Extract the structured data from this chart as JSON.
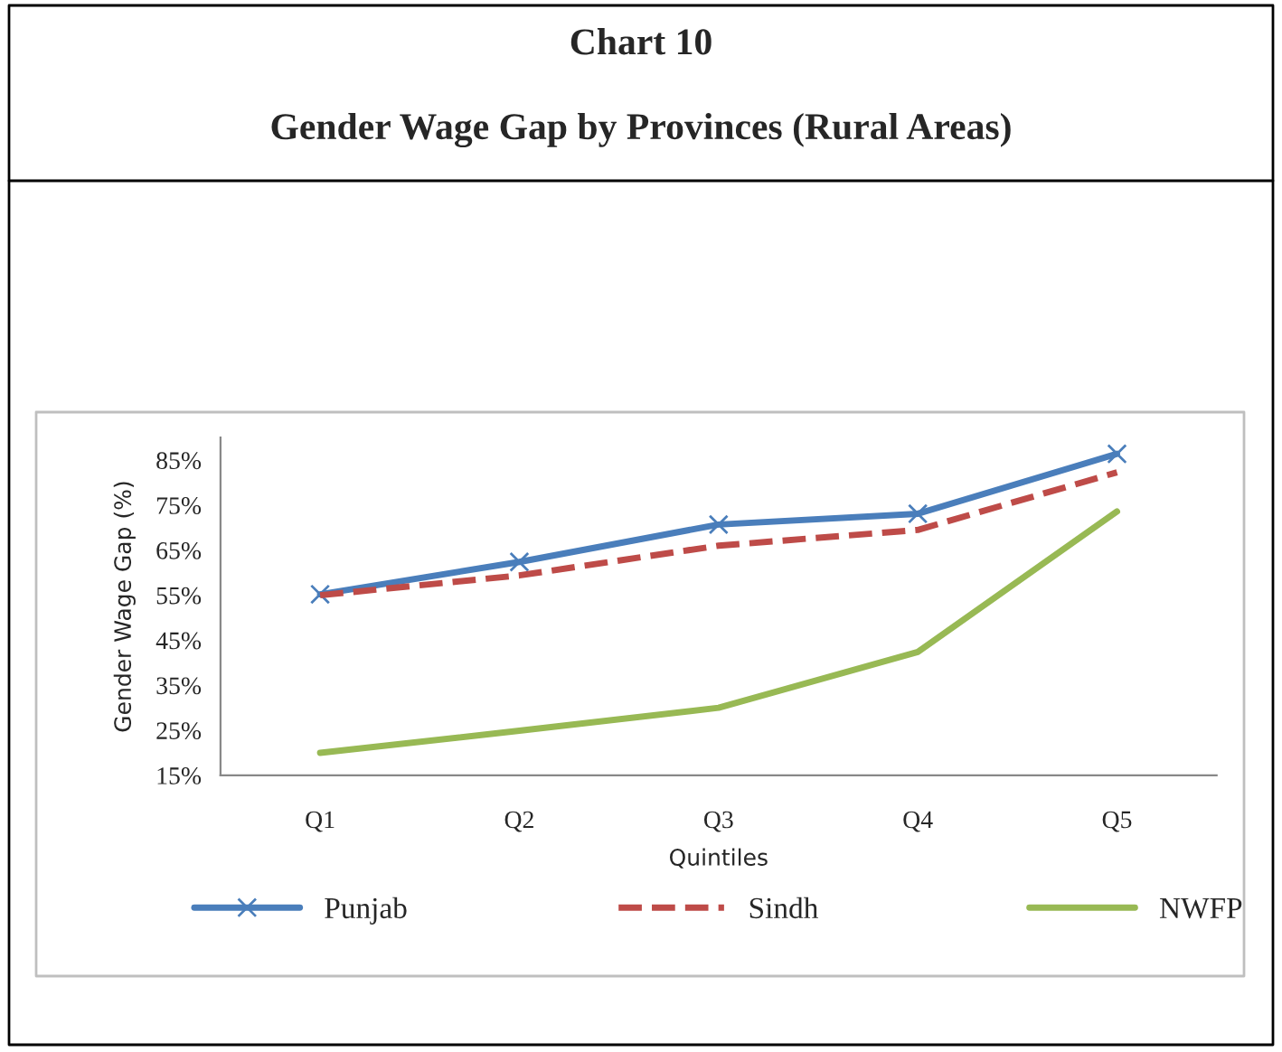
{
  "chart_data": {
    "type": "line",
    "title": "Chart 10",
    "subtitle": "Gender Wage Gap by Provinces (Rural Areas)",
    "xlabel": "Quintiles",
    "ylabel": "Gender Wage Gap (%)",
    "categories": [
      "Q1",
      "Q2",
      "Q3",
      "Q4",
      "Q5"
    ],
    "series": [
      {
        "name": "Punjab",
        "color": "#4a7ebb",
        "marker": "cross",
        "line_style": "solid",
        "values": [
          55.2,
          62.4,
          70.7,
          73.1,
          86.4
        ]
      },
      {
        "name": "Sindh",
        "color": "#be4b48",
        "marker": "none",
        "line_style": "dashed",
        "values": [
          55.0,
          59.4,
          66.0,
          69.5,
          82.3
        ]
      },
      {
        "name": "NWFP",
        "color": "#98b954",
        "marker": "none",
        "line_style": "solid",
        "values": [
          20.0,
          24.9,
          30.0,
          42.4,
          73.6
        ]
      }
    ],
    "ylim": [
      15,
      90
    ],
    "yticks": [
      {
        "value": 15,
        "label": "15%"
      },
      {
        "value": 25,
        "label": "25%"
      },
      {
        "value": 35,
        "label": "35%"
      },
      {
        "value": 45,
        "label": "45%"
      },
      {
        "value": 55,
        "label": "55%"
      },
      {
        "value": 65,
        "label": "65%"
      },
      {
        "value": 75,
        "label": "75%"
      },
      {
        "value": 85,
        "label": "85%"
      }
    ],
    "grid": false,
    "legend": "bottom"
  }
}
